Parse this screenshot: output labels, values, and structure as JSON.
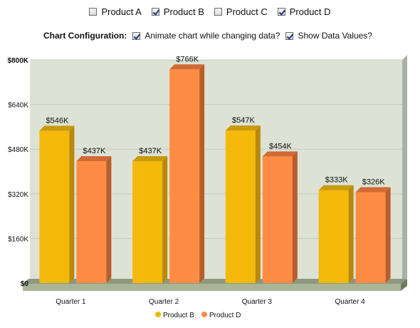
{
  "products": [
    {
      "label": "Product A",
      "checked": false
    },
    {
      "label": "Product B",
      "checked": true
    },
    {
      "label": "Product C",
      "checked": false
    },
    {
      "label": "Product D",
      "checked": true
    }
  ],
  "config": {
    "title": "Chart Configuration:",
    "animate_label": "Animate chart while changing data?",
    "animate_checked": true,
    "show_values_label": "Show Data Values?",
    "show_values_checked": true
  },
  "chart_data": {
    "type": "bar",
    "categories": [
      "Quarter 1",
      "Quarter 2",
      "Quarter 3",
      "Quarter 4"
    ],
    "series": [
      {
        "name": "Product B",
        "values": [
          546,
          437,
          547,
          333
        ],
        "labels": [
          "$546K",
          "$437K",
          "$547K",
          "$333K"
        ],
        "color": "#f5b90c",
        "side": "#b8890a",
        "top": "#c99a0c"
      },
      {
        "name": "Product D",
        "values": [
          437,
          766,
          454,
          326
        ],
        "labels": [
          "$437K",
          "$766K",
          "$454K",
          "$326K"
        ],
        "color": "#ff8c44",
        "side": "#b85e2c",
        "top": "#d06a34"
      }
    ],
    "yticks": [
      "$0",
      "$160K",
      "$320K",
      "$480K",
      "$640K",
      "$800K"
    ],
    "ylim": [
      0,
      800
    ],
    "ytick_values": [
      0,
      160,
      320,
      480,
      640,
      800
    ],
    "grid": true,
    "legend": "bottom-center",
    "canvas_color": "#dde2d4",
    "floor_color": "#a9b596"
  }
}
